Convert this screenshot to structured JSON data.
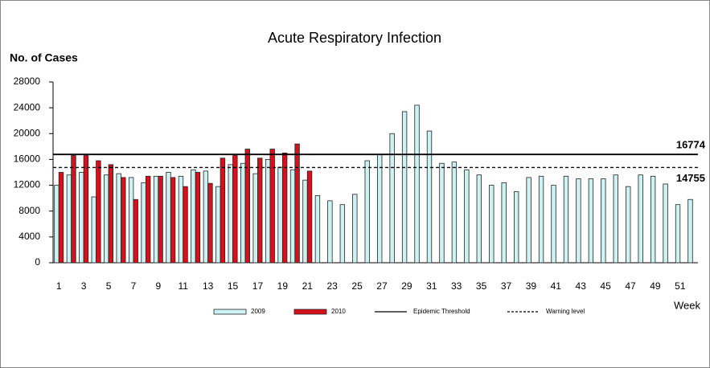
{
  "chart_data": {
    "type": "bar",
    "title": "Acute Respiratory Infection",
    "y_label": "No. of Cases",
    "x_label": "Week",
    "categories": [
      "1",
      null,
      "3",
      null,
      "5",
      null,
      "7",
      null,
      "9",
      null,
      "11",
      null,
      "13",
      null,
      "15",
      null,
      "17",
      null,
      "19",
      null,
      "21",
      null,
      "23",
      null,
      "25",
      null,
      "27",
      null,
      "29",
      null,
      "31",
      null,
      "33",
      null,
      "35",
      null,
      "37",
      null,
      "39",
      null,
      "41",
      null,
      "43",
      null,
      "45",
      null,
      "47",
      null,
      "49",
      null,
      "51",
      null
    ],
    "series": [
      {
        "name": "2009",
        "color": "#cdf2f2",
        "values": [
          12000,
          13600,
          14000,
          10200,
          13600,
          13800,
          13200,
          12400,
          13400,
          14000,
          13400,
          14400,
          14200,
          11800,
          15200,
          15400,
          13800,
          16000,
          14800,
          14400,
          12800,
          10400,
          9600,
          9000,
          10600,
          15800,
          16800,
          20000,
          23400,
          24400,
          20400,
          15400,
          15600,
          14400,
          13600,
          12000,
          12400,
          11000,
          13200,
          13400,
          12000,
          13400,
          13000,
          13000,
          13000,
          13600,
          11800,
          13600,
          13400,
          12200,
          9000,
          9800
        ]
      },
      {
        "name": "2010",
        "color": "#d8101c",
        "values": [
          14000,
          16600,
          16600,
          15800,
          15200,
          13200,
          9800,
          13400,
          13400,
          13200,
          11800,
          14000,
          12300,
          16200,
          16600,
          17600,
          16200,
          17600,
          17000,
          18400,
          14200,
          null,
          null,
          null,
          null,
          null,
          null,
          null,
          null,
          null,
          null,
          null,
          null,
          null,
          null,
          null,
          null,
          null,
          null,
          null,
          null,
          null,
          null,
          null,
          null,
          null,
          null,
          null,
          null,
          null,
          null,
          null
        ]
      }
    ],
    "lines": [
      {
        "name": "Epidemic Threshold",
        "value": 16774,
        "style": "solid"
      },
      {
        "name": "Warning level",
        "value": 14755,
        "style": "dashed"
      }
    ],
    "ylim": [
      0,
      28000
    ],
    "yticks": [
      0,
      4000,
      8000,
      12000,
      16000,
      20000,
      24000,
      28000
    ]
  }
}
